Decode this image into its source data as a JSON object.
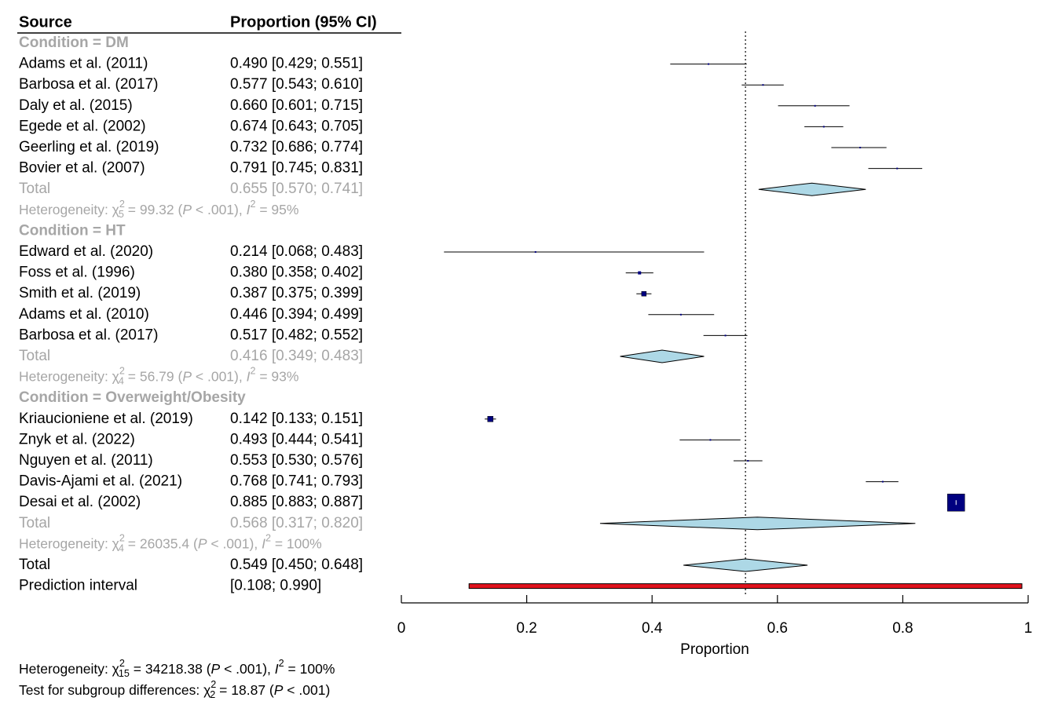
{
  "chart_data": {
    "type": "forest",
    "x_axis": {
      "label": "Proportion",
      "ticks": [
        0,
        0.2,
        0.4,
        0.6,
        0.8,
        1
      ],
      "tick_labels": [
        "0",
        "0.2",
        "0.4",
        "0.6",
        "0.8",
        "1"
      ],
      "range": [
        0,
        1
      ]
    },
    "reference_line": 0.549,
    "headers": {
      "source": "Source",
      "estimate": "Proportion (95% CI)"
    },
    "groups": [
      {
        "label": "Condition = DM",
        "studies": [
          {
            "name": "Adams et al. (2011)",
            "est": 0.49,
            "lo": 0.429,
            "hi": 0.551,
            "text": "0.490 [0.429; 0.551]",
            "w": 2
          },
          {
            "name": "Barbosa et al. (2017)",
            "est": 0.577,
            "lo": 0.543,
            "hi": 0.61,
            "text": "0.577 [0.543; 0.610]",
            "w": 2
          },
          {
            "name": "Daly et al. (2015)",
            "est": 0.66,
            "lo": 0.601,
            "hi": 0.715,
            "text": "0.660 [0.601; 0.715]",
            "w": 2
          },
          {
            "name": "Egede et al. (2002)",
            "est": 0.674,
            "lo": 0.643,
            "hi": 0.705,
            "text": "0.674 [0.643; 0.705]",
            "w": 2
          },
          {
            "name": "Geerling et al. (2019)",
            "est": 0.732,
            "lo": 0.686,
            "hi": 0.774,
            "text": "0.732 [0.686; 0.774]",
            "w": 2
          },
          {
            "name": "Bovier et al. (2007)",
            "est": 0.791,
            "lo": 0.745,
            "hi": 0.831,
            "text": "0.791 [0.745; 0.831]",
            "w": 2
          }
        ],
        "total": {
          "label": "Total",
          "est": 0.655,
          "lo": 0.57,
          "hi": 0.741,
          "text": "0.655 [0.570; 0.741]"
        },
        "heterogeneity": {
          "prefix": "Heterogeneity: χ",
          "df": "5",
          "mid": " = 99.32 (",
          "p": "P",
          "pval": " < .001), ",
          "i2": "I",
          "i2val": " = 95%"
        }
      },
      {
        "label": "Condition = HT",
        "studies": [
          {
            "name": "Edward et al. (2020)",
            "est": 0.214,
            "lo": 0.068,
            "hi": 0.483,
            "text": "0.214 [0.068; 0.483]",
            "w": 2
          },
          {
            "name": "Foss et al. (1996)",
            "est": 0.38,
            "lo": 0.358,
            "hi": 0.402,
            "text": "0.380 [0.358; 0.402]",
            "w": 4
          },
          {
            "name": "Smith et al. (2019)",
            "est": 0.387,
            "lo": 0.375,
            "hi": 0.399,
            "text": "0.387 [0.375; 0.399]",
            "w": 6
          },
          {
            "name": "Adams et al. (2010)",
            "est": 0.446,
            "lo": 0.394,
            "hi": 0.499,
            "text": "0.446 [0.394; 0.499]",
            "w": 2
          },
          {
            "name": "Barbosa et al. (2017)",
            "est": 0.517,
            "lo": 0.482,
            "hi": 0.552,
            "text": "0.517 [0.482; 0.552]",
            "w": 2
          }
        ],
        "total": {
          "label": "Total",
          "est": 0.416,
          "lo": 0.349,
          "hi": 0.483,
          "text": "0.416 [0.349; 0.483]"
        },
        "heterogeneity": {
          "prefix": "Heterogeneity: χ",
          "df": "4",
          "mid": " = 56.79 (",
          "p": "P",
          "pval": " < .001), ",
          "i2": "I",
          "i2val": " = 93%"
        }
      },
      {
        "label": "Condition = Overweight/Obesity",
        "studies": [
          {
            "name": "Kriaucioniene et al. (2019)",
            "est": 0.142,
            "lo": 0.133,
            "hi": 0.151,
            "text": "0.142 [0.133; 0.151]",
            "w": 7
          },
          {
            "name": "Znyk et al. (2022)",
            "est": 0.493,
            "lo": 0.444,
            "hi": 0.541,
            "text": "0.493 [0.444; 0.541]",
            "w": 2
          },
          {
            "name": "Nguyen et al. (2011)",
            "est": 0.553,
            "lo": 0.53,
            "hi": 0.576,
            "text": "0.553 [0.530; 0.576]",
            "w": 2
          },
          {
            "name": "Davis-Ajami et al. (2021)",
            "est": 0.768,
            "lo": 0.741,
            "hi": 0.793,
            "text": "0.768 [0.741; 0.793]",
            "w": 2
          },
          {
            "name": "Desai et al. (2002)",
            "est": 0.885,
            "lo": 0.883,
            "hi": 0.887,
            "text": "0.885 [0.883; 0.887]",
            "w": 22
          }
        ],
        "total": {
          "label": "Total",
          "est": 0.568,
          "lo": 0.317,
          "hi": 0.82,
          "text": "0.568 [0.317; 0.820]"
        },
        "heterogeneity": {
          "prefix": "Heterogeneity: χ",
          "df": "4",
          "mid": " = 26035.4 (",
          "p": "P",
          "pval": " < .001), ",
          "i2": "I",
          "i2val": " = 100%"
        }
      }
    ],
    "overall": {
      "label": "Total",
      "est": 0.549,
      "lo": 0.45,
      "hi": 0.648,
      "text": "0.549 [0.450; 0.648]"
    },
    "prediction": {
      "label": "Prediction interval",
      "lo": 0.108,
      "hi": 0.99,
      "text": "[0.108; 0.990]"
    },
    "footer": [
      {
        "prefix": "Heterogeneity: χ",
        "df": "15",
        "mid": " = 34218.38 (",
        "p": "P",
        "pval": " < .001), ",
        "i2": "I",
        "i2val": " = 100%"
      },
      {
        "prefix": "Test for subgroup differences: χ",
        "df": "2",
        "mid": " = 18.87 (",
        "p": "P",
        "pval": " < .001)"
      }
    ],
    "colors": {
      "diamond_fill": "#add8e6",
      "square_fill": "#000080",
      "prediction_fill": "#e0121c",
      "grey_text": "#a6a6a6"
    }
  }
}
